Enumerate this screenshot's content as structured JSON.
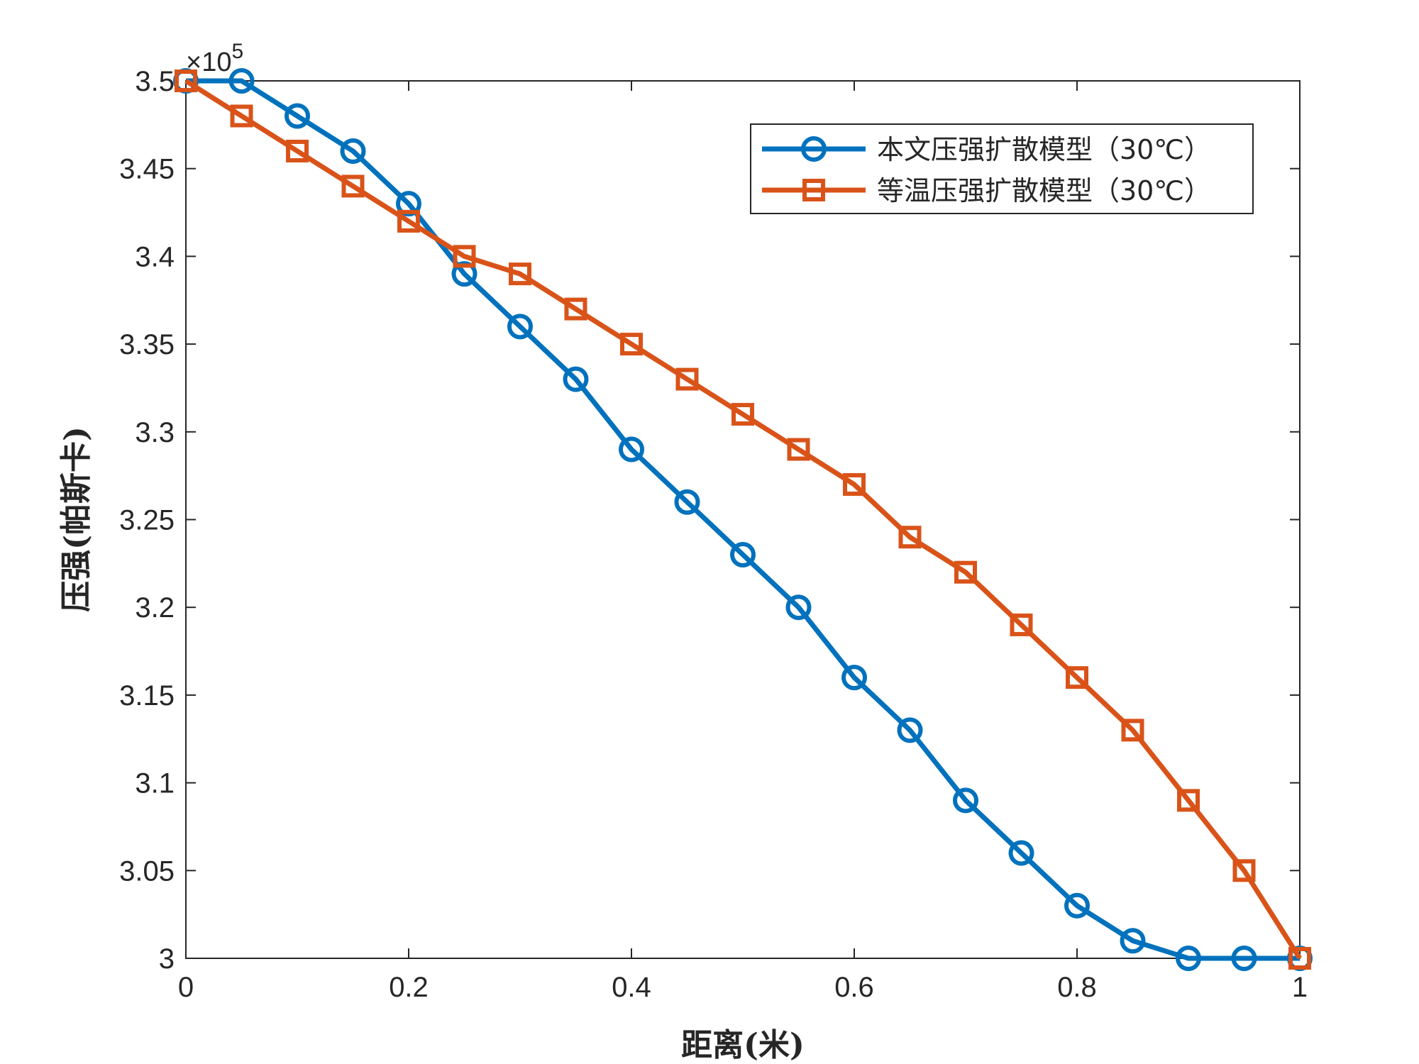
{
  "chart_data": {
    "type": "line",
    "xlabel": "距离(米)",
    "ylabel": "压强(帕斯卡)",
    "xlim": [
      0,
      1
    ],
    "ylim": [
      3.0,
      3.5
    ],
    "y_multiplier_label": "×10",
    "y_multiplier_exponent": "5",
    "x_ticks": [
      "0",
      "0.2",
      "0.4",
      "0.6",
      "0.8",
      "1"
    ],
    "y_ticks": [
      "3",
      "3.05",
      "3.1",
      "3.15",
      "3.2",
      "3.25",
      "3.3",
      "3.35",
      "3.4",
      "3.45",
      "3.5"
    ],
    "x_tick_values": [
      0,
      0.2,
      0.4,
      0.6,
      0.8,
      1
    ],
    "y_tick_values": [
      3.0,
      3.05,
      3.1,
      3.15,
      3.2,
      3.25,
      3.3,
      3.35,
      3.4,
      3.45,
      3.5
    ],
    "grid": false,
    "legend_position": "top-right",
    "x": [
      0,
      0.05,
      0.1,
      0.15,
      0.2,
      0.25,
      0.3,
      0.35,
      0.4,
      0.45,
      0.5,
      0.55,
      0.6,
      0.65,
      0.7,
      0.75,
      0.8,
      0.85,
      0.9,
      0.95,
      1.0
    ],
    "series": [
      {
        "name": "本文压强扩散模型（30℃）",
        "color": "#0072BD",
        "marker": "circle",
        "values": [
          3.5,
          3.5,
          3.48,
          3.46,
          3.43,
          3.39,
          3.36,
          3.33,
          3.29,
          3.26,
          3.23,
          3.2,
          3.16,
          3.13,
          3.09,
          3.06,
          3.03,
          3.01,
          3.0,
          3.0,
          3.0
        ]
      },
      {
        "name": "等温压强扩散模型（30℃）",
        "color": "#D95319",
        "marker": "square",
        "values": [
          3.5,
          3.48,
          3.46,
          3.44,
          3.42,
          3.4,
          3.39,
          3.37,
          3.35,
          3.33,
          3.31,
          3.29,
          3.27,
          3.24,
          3.22,
          3.19,
          3.16,
          3.13,
          3.09,
          3.05,
          3.0
        ]
      }
    ]
  }
}
